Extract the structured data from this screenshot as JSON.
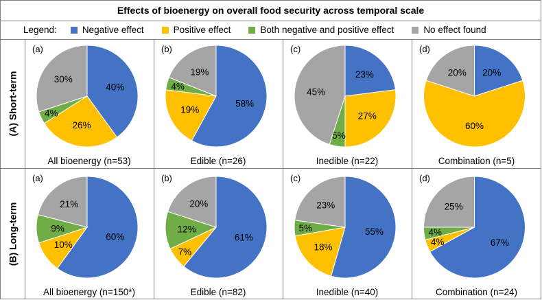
{
  "title": "Effects  of bioenergy on overall food security  across temporal scale",
  "legend": {
    "label": "Legend:",
    "items": [
      {
        "key": "negative",
        "label": "Negative  effect",
        "color": "#4472C4"
      },
      {
        "key": "positive",
        "label": "Positive  effect",
        "color": "#FFC000"
      },
      {
        "key": "both",
        "label": "Both negative  and positive effect",
        "color": "#70AD47"
      },
      {
        "key": "none",
        "label": "No effect found",
        "color": "#A5A5A5"
      }
    ]
  },
  "rows": [
    {
      "label": "(A)  Short-term"
    },
    {
      "label": "(B)  Long-term"
    }
  ],
  "chart_data": [
    {
      "type": "pie",
      "row": "(A) Short-term",
      "panel": "(a)",
      "caption": "All bioenergy  (n=53)",
      "labels": [
        "Negative effect",
        "Positive effect",
        "Both negative and positive effect",
        "No effect found"
      ],
      "values": [
        40,
        26,
        4,
        30
      ],
      "value_labels": [
        "40%",
        "26%",
        "4%",
        "30%"
      ]
    },
    {
      "type": "pie",
      "row": "(A) Short-term",
      "panel": "(b)",
      "caption": "Edible  (n=26)",
      "labels": [
        "Negative effect",
        "Positive effect",
        "Both negative and positive effect",
        "No effect found"
      ],
      "values": [
        58,
        19,
        4,
        19
      ],
      "value_labels": [
        "58%",
        "19%",
        "4%",
        "19%"
      ]
    },
    {
      "type": "pie",
      "row": "(A) Short-term",
      "panel": "(c)",
      "caption": "Inedible  (n=22)",
      "labels": [
        "Negative effect",
        "Positive effect",
        "Both negative and positive effect",
        "No effect found"
      ],
      "values": [
        23,
        27,
        5,
        45
      ],
      "value_labels": [
        "23%",
        "27%",
        "5%",
        "45%"
      ]
    },
    {
      "type": "pie",
      "row": "(A) Short-term",
      "panel": "(d)",
      "caption": "Combination  (n=5)",
      "labels": [
        "Negative effect",
        "Positive effect",
        "Both negative and positive effect",
        "No effect found"
      ],
      "values": [
        20,
        60,
        0,
        20
      ],
      "value_labels": [
        "20%",
        "60%",
        "",
        "20%"
      ]
    },
    {
      "type": "pie",
      "row": "(B) Long-term",
      "panel": "(a)",
      "caption": "All bioenergy  (n=150*)",
      "labels": [
        "Negative effect",
        "Positive effect",
        "Both negative and positive effect",
        "No effect found"
      ],
      "values": [
        60,
        10,
        9,
        21
      ],
      "value_labels": [
        "60%",
        "10%",
        "9%",
        "21%"
      ]
    },
    {
      "type": "pie",
      "row": "(B) Long-term",
      "panel": "(b)",
      "caption": "Edible  (n=82)",
      "labels": [
        "Negative effect",
        "Positive effect",
        "Both negative and positive effect",
        "No effect found"
      ],
      "values": [
        61,
        7,
        12,
        20
      ],
      "value_labels": [
        "61%",
        "7%",
        "12%",
        "20%"
      ]
    },
    {
      "type": "pie",
      "row": "(B) Long-term",
      "panel": "(c)",
      "caption": "Inedible  (n=40)",
      "labels": [
        "Negative effect",
        "Positive effect",
        "Both negative and positive effect",
        "No effect found"
      ],
      "values": [
        55,
        18,
        5,
        23
      ],
      "value_labels": [
        "55%",
        "18%",
        "5%",
        "23%"
      ]
    },
    {
      "type": "pie",
      "row": "(B) Long-term",
      "panel": "(d)",
      "caption": "Combination  (n=24)",
      "labels": [
        "Negative effect",
        "Positive effect",
        "Both negative and positive effect",
        "No effect found"
      ],
      "values": [
        67,
        4,
        4,
        25
      ],
      "value_labels": [
        "67%",
        "4%",
        "4%",
        "25%"
      ]
    }
  ]
}
